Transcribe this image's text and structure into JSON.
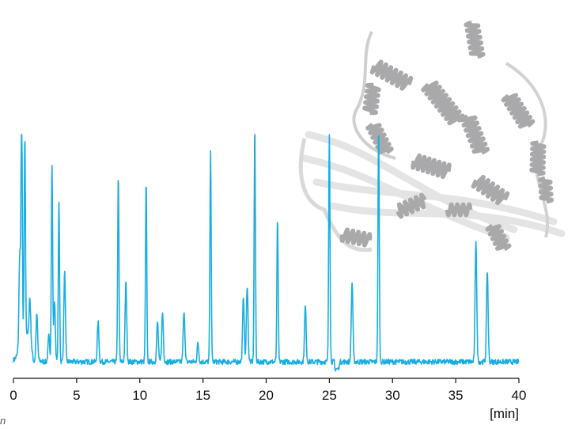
{
  "chart_data": {
    "type": "line",
    "title": "",
    "xlabel": "[min]",
    "ylabel": "",
    "xlim": [
      0,
      40
    ],
    "ylim": [
      0,
      100
    ],
    "x_ticks": [
      0,
      5,
      10,
      15,
      20,
      25,
      30,
      35,
      40
    ],
    "grid": false,
    "legend": "none",
    "baseline_level": 3,
    "peaks": [
      {
        "x": 0.5,
        "height": 40
      },
      {
        "x": 0.65,
        "height": 100
      },
      {
        "x": 0.9,
        "height": 85
      },
      {
        "x": 1.3,
        "height": 18
      },
      {
        "x": 1.85,
        "height": 19
      },
      {
        "x": 2.8,
        "height": 11
      },
      {
        "x": 3.05,
        "height": 85
      },
      {
        "x": 3.25,
        "height": 26
      },
      {
        "x": 3.6,
        "height": 68
      },
      {
        "x": 4.05,
        "height": 38
      },
      {
        "x": 6.7,
        "height": 17
      },
      {
        "x": 8.3,
        "height": 80
      },
      {
        "x": 8.9,
        "height": 34
      },
      {
        "x": 10.5,
        "height": 77
      },
      {
        "x": 11.4,
        "height": 17
      },
      {
        "x": 11.8,
        "height": 21
      },
      {
        "x": 13.5,
        "height": 22
      },
      {
        "x": 14.6,
        "height": 8
      },
      {
        "x": 15.6,
        "height": 89
      },
      {
        "x": 18.2,
        "height": 28
      },
      {
        "x": 18.5,
        "height": 33
      },
      {
        "x": 19.1,
        "height": 100
      },
      {
        "x": 20.9,
        "height": 61
      },
      {
        "x": 23.1,
        "height": 24
      },
      {
        "x": 25.0,
        "height": 100
      },
      {
        "x": 26.8,
        "height": 34
      },
      {
        "x": 28.9,
        "height": 100
      },
      {
        "x": 36.6,
        "height": 52
      },
      {
        "x": 37.5,
        "height": 39
      }
    ],
    "line_color": "#1aaee0",
    "axis_color": "#111111"
  },
  "inset": {
    "subject": "protein-ribbon-structure",
    "color": "#a9a9ab"
  },
  "corner_glyph": "n"
}
